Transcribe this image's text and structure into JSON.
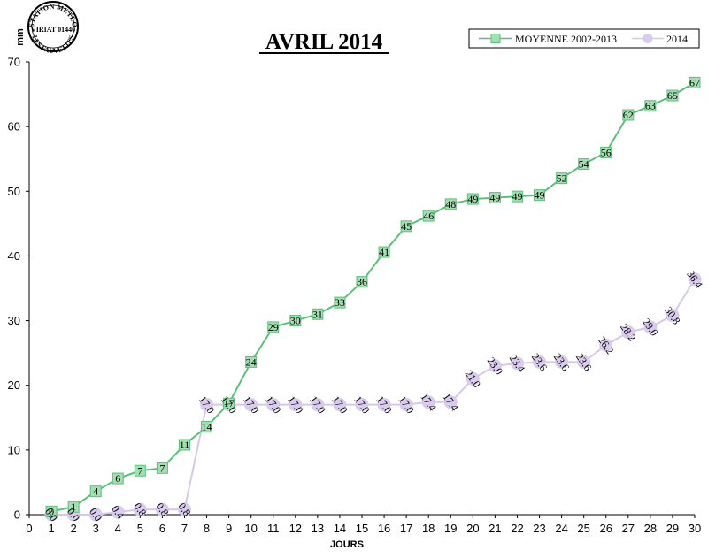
{
  "stamp": {
    "top_text": "STATION METEO",
    "middle_text": "VIRIAT 01440",
    "bottom_text": "LES FAUVETTES"
  },
  "colors": {
    "series_1": "#5cbf7a",
    "series_1_fill": "#a6deb4",
    "series_2": "#d6c9e8",
    "series_2_fill": "#d9ccec",
    "axis": "#000000"
  },
  "chart_data": {
    "type": "line",
    "title": "AVRIL 2014",
    "xlabel": "JOURS",
    "ylabel": "mm",
    "xlim": [
      0,
      30
    ],
    "ylim": [
      0,
      70
    ],
    "x_ticks": [
      0,
      1,
      2,
      3,
      4,
      5,
      6,
      7,
      8,
      9,
      10,
      11,
      12,
      13,
      14,
      15,
      16,
      17,
      18,
      19,
      20,
      21,
      22,
      23,
      24,
      25,
      26,
      27,
      28,
      29,
      30
    ],
    "y_ticks": [
      0,
      10,
      20,
      30,
      40,
      50,
      60,
      70
    ],
    "grid": false,
    "legend": "top-right",
    "x": [
      1,
      2,
      3,
      4,
      5,
      6,
      7,
      8,
      9,
      10,
      11,
      12,
      13,
      14,
      15,
      16,
      17,
      18,
      19,
      20,
      21,
      22,
      23,
      24,
      25,
      26,
      27,
      28,
      29,
      30
    ],
    "series": [
      {
        "name": "MOYENNE 2002-2013",
        "marker": "square",
        "values": [
          0.5,
          1.2,
          3.6,
          5.6,
          6.8,
          7.2,
          10.8,
          13.6,
          17.2,
          23.6,
          29.0,
          30.0,
          31.0,
          32.8,
          36.0,
          40.6,
          44.6,
          46.2,
          48.0,
          48.8,
          49.0,
          49.2,
          49.4,
          52.0,
          54.2,
          56.0,
          61.8,
          63.2,
          64.8,
          66.8
        ],
        "labels": [
          "0",
          "1",
          "4",
          "6",
          "7",
          "7",
          "11",
          "14",
          "17",
          "24",
          "29",
          "30",
          "31",
          "33",
          "36",
          "41",
          "45",
          "46",
          "48",
          "49",
          "49",
          "49",
          "49",
          "52",
          "54",
          "56",
          "62",
          "63",
          "65",
          "67"
        ]
      },
      {
        "name": "2014",
        "marker": "circle",
        "values": [
          0.0,
          0.0,
          0.0,
          0.4,
          0.8,
          0.8,
          0.8,
          17.0,
          17.0,
          17.0,
          17.0,
          17.0,
          17.0,
          17.0,
          17.0,
          17.0,
          17.0,
          17.4,
          17.4,
          21.0,
          23.0,
          23.4,
          23.6,
          23.6,
          23.6,
          26.2,
          28.2,
          29.0,
          30.8,
          36.4
        ],
        "labels": [
          "0.0",
          "0.0",
          "0.0",
          "0.4",
          "0.8",
          "0.8",
          "0.8",
          "17.0",
          "17.0",
          "17.0",
          "17.0",
          "17.0",
          "17.0",
          "17.0",
          "17.0",
          "17.0",
          "17.0",
          "17.4",
          "17.4",
          "21.0",
          "23.0",
          "23.4",
          "23.6",
          "23.6",
          "23.6",
          "26.2",
          "28.2",
          "29.0",
          "30.8",
          "36.4"
        ]
      }
    ]
  }
}
